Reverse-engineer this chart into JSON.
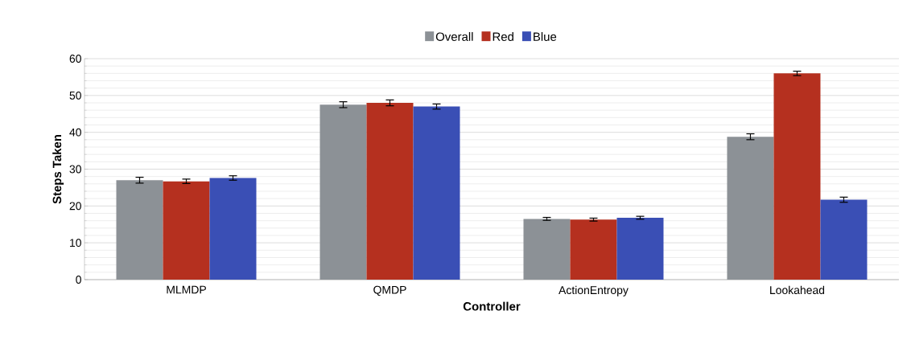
{
  "chart_data": {
    "type": "bar",
    "xlabel": "Controller",
    "ylabel": "Steps Taken",
    "categories": [
      "MLMDP",
      "QMDP",
      "ActionEntropy",
      "Lookahead"
    ],
    "series": [
      {
        "name": "Overall",
        "color": "#8c9196",
        "values": [
          27,
          47.5,
          16.5,
          38.8
        ],
        "errors": [
          0.8,
          0.8,
          0.4,
          0.8
        ]
      },
      {
        "name": "Red",
        "color": "#b5301f",
        "values": [
          26.7,
          48,
          16.3,
          56
        ],
        "errors": [
          0.6,
          0.8,
          0.4,
          0.6
        ]
      },
      {
        "name": "Blue",
        "color": "#3a4fb5",
        "values": [
          27.6,
          47,
          16.8,
          21.7
        ],
        "errors": [
          0.6,
          0.7,
          0.4,
          0.7
        ]
      }
    ],
    "ylim": [
      0,
      60
    ],
    "yticks": [
      0,
      10,
      20,
      30,
      40,
      50,
      60
    ],
    "grid": "y",
    "legend": "top"
  }
}
